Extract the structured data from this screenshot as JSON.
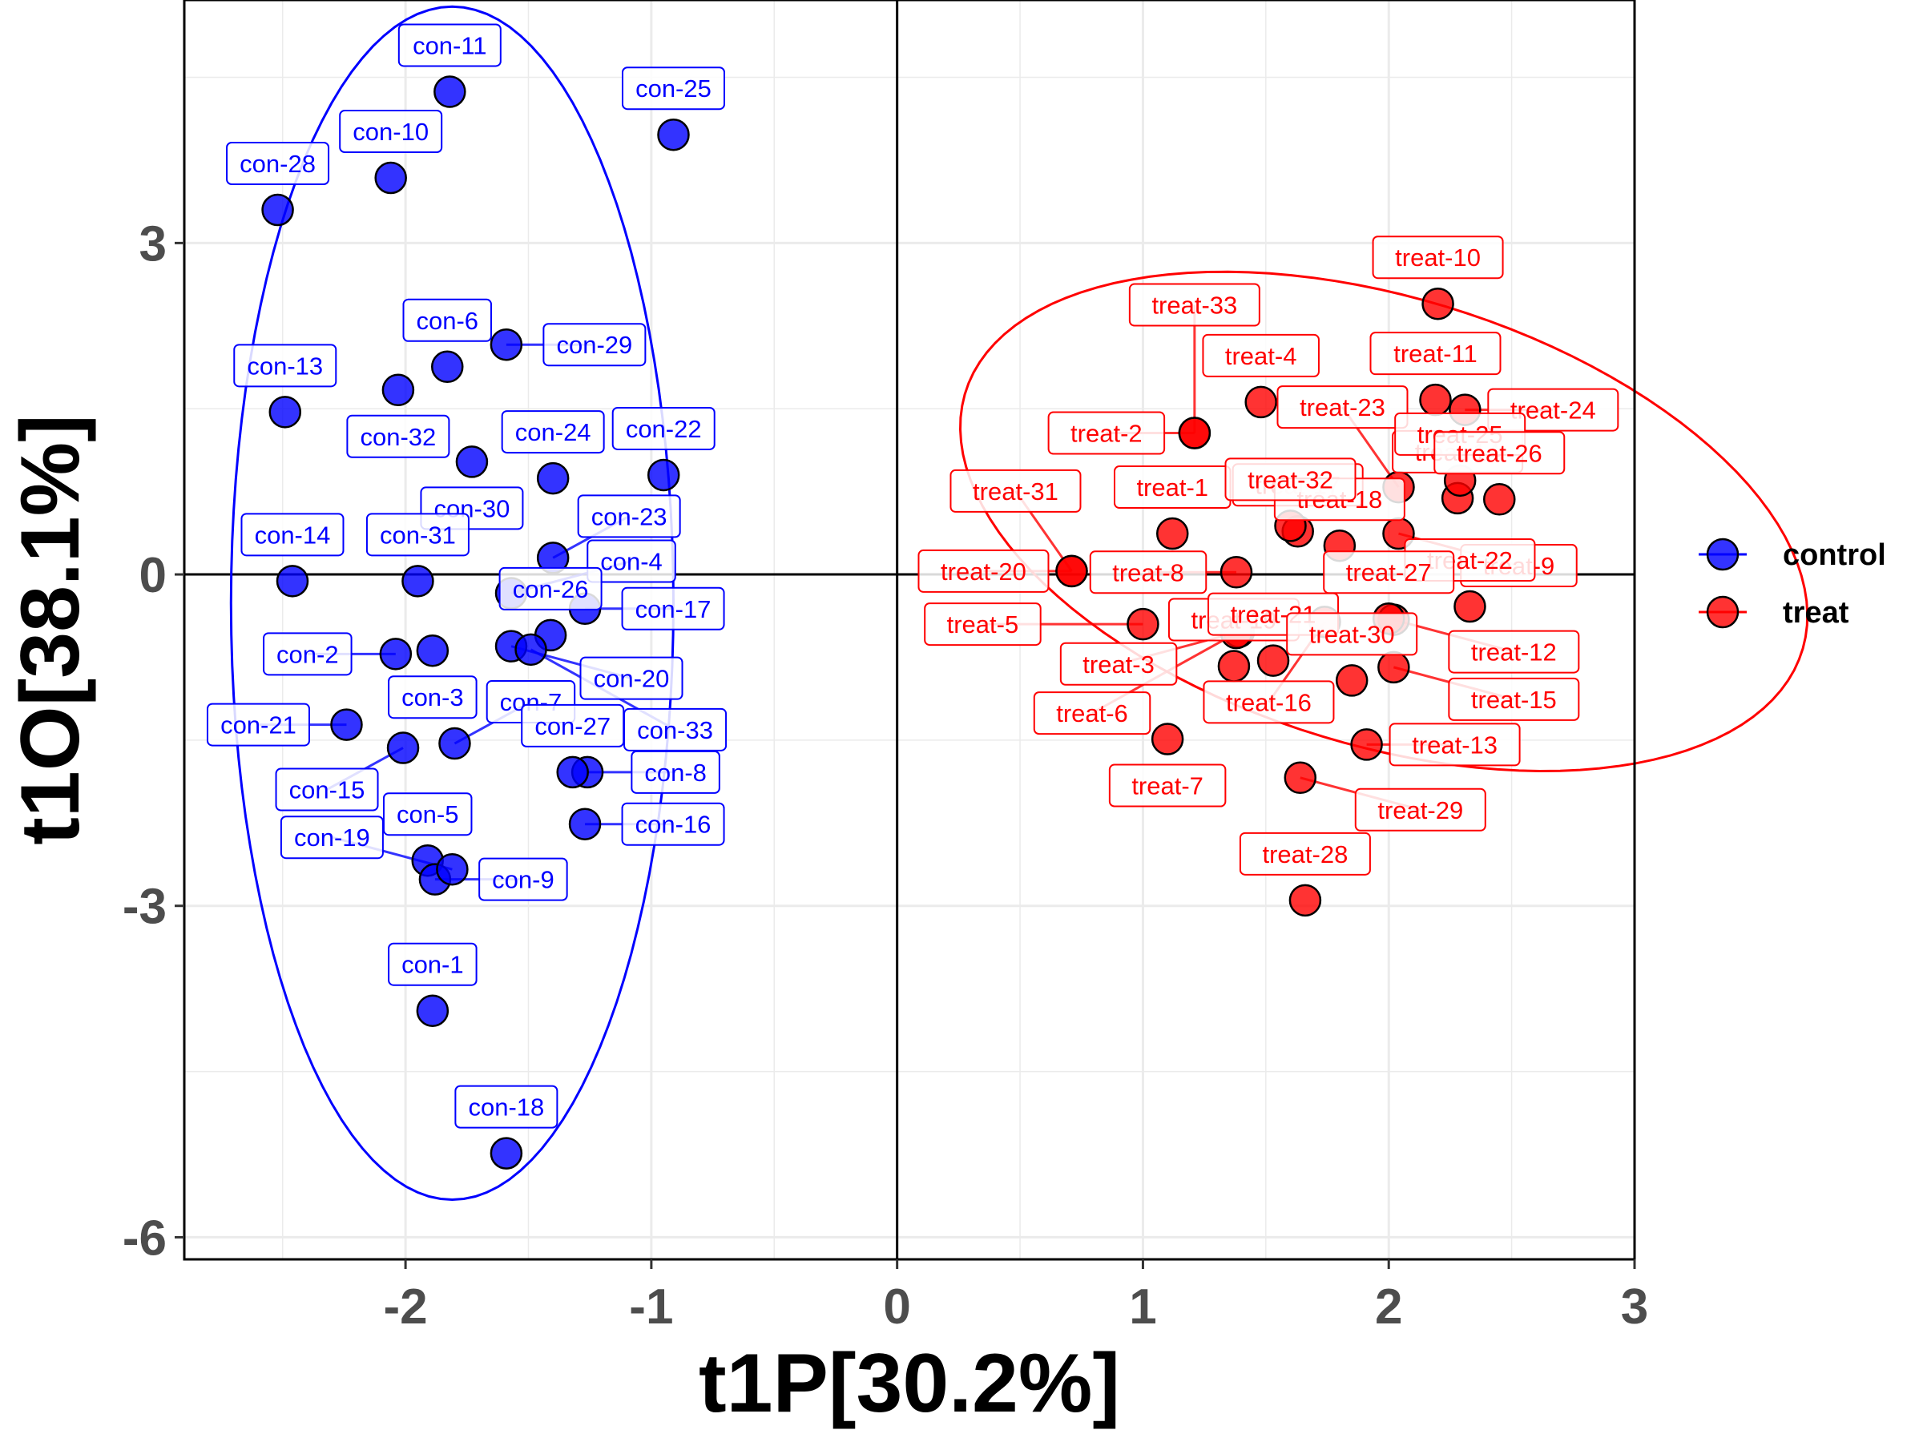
{
  "chart_data": {
    "type": "scatter",
    "title": "",
    "xlabel": "t1P[30.2%]",
    "ylabel": "t1O[38.1%]",
    "xlim": [
      -2.9,
      3.0
    ],
    "ylim": [
      -6.2,
      5.2
    ],
    "xticks": [
      -2,
      -1,
      0,
      1,
      2,
      3
    ],
    "yticks": [
      -6,
      -3,
      0,
      3
    ],
    "xtick_labels": [
      "-2",
      "-1",
      "0",
      "1",
      "2",
      "3"
    ],
    "ytick_labels": [
      "-6",
      "-3",
      "0",
      "3"
    ],
    "grid": true,
    "legend_position": "right",
    "series": [
      {
        "name": "control",
        "color": "#0000ff",
        "ellipse": {
          "cx": -1.81,
          "cy": -0.26,
          "rx": 0.9,
          "ry": 5.4
        },
        "points": [
          {
            "label": "con-1",
            "x": -1.89,
            "y": -3.95
          },
          {
            "label": "con-2",
            "x": -2.04,
            "y": -0.72
          },
          {
            "label": "con-3",
            "x": -1.89,
            "y": -0.69
          },
          {
            "label": "con-4",
            "x": -1.57,
            "y": -0.17
          },
          {
            "label": "con-5",
            "x": -1.91,
            "y": -2.59
          },
          {
            "label": "con-6",
            "x": -1.83,
            "y": 1.88
          },
          {
            "label": "con-7",
            "x": -1.8,
            "y": -1.53
          },
          {
            "label": "con-8",
            "x": -1.26,
            "y": -1.79
          },
          {
            "label": "con-9",
            "x": -1.88,
            "y": -2.76
          },
          {
            "label": "con-10",
            "x": -2.06,
            "y": 3.59
          },
          {
            "label": "con-11",
            "x": -1.82,
            "y": 4.37
          },
          {
            "label": "con-13",
            "x": -2.49,
            "y": 1.47
          },
          {
            "label": "con-14",
            "x": -2.46,
            "y": -0.06
          },
          {
            "label": "con-15",
            "x": -2.01,
            "y": -1.57
          },
          {
            "label": "con-16",
            "x": -1.27,
            "y": -2.26
          },
          {
            "label": "con-17",
            "x": -1.27,
            "y": -0.31
          },
          {
            "label": "con-18",
            "x": -1.59,
            "y": -5.24
          },
          {
            "label": "con-19",
            "x": -1.81,
            "y": -2.67
          },
          {
            "label": "con-20",
            "x": -1.57,
            "y": -0.65
          },
          {
            "label": "con-21",
            "x": -2.24,
            "y": -1.36
          },
          {
            "label": "con-22",
            "x": -0.95,
            "y": 0.9
          },
          {
            "label": "con-23",
            "x": -1.4,
            "y": 0.15
          },
          {
            "label": "con-24",
            "x": -1.4,
            "y": 0.87
          },
          {
            "label": "con-25",
            "x": -0.91,
            "y": 3.98
          },
          {
            "label": "con-26",
            "x": -1.41,
            "y": -0.55
          },
          {
            "label": "con-27",
            "x": -1.32,
            "y": -1.79
          },
          {
            "label": "con-28",
            "x": -2.52,
            "y": 3.3
          },
          {
            "label": "con-29",
            "x": -1.59,
            "y": 2.08
          },
          {
            "label": "con-30",
            "x": -1.73,
            "y": 1.02
          },
          {
            "label": "con-31",
            "x": -1.95,
            "y": -0.06
          },
          {
            "label": "con-32",
            "x": -2.03,
            "y": 1.67
          },
          {
            "label": "con-33",
            "x": -1.49,
            "y": -0.68
          }
        ]
      },
      {
        "name": "treat",
        "color": "#ff0000",
        "ellipse": {
          "cx": 1.98,
          "cy": 0.48,
          "rx": 1.49,
          "ry": 2.42,
          "rot": 27
        },
        "points": [
          {
            "label": "treat-1",
            "x": 1.12,
            "y": 0.37
          },
          {
            "label": "treat-2",
            "x": 1.21,
            "y": 1.28
          },
          {
            "label": "treat-3",
            "x": 1.39,
            "y": -0.52
          },
          {
            "label": "treat-4",
            "x": 1.48,
            "y": 1.56
          },
          {
            "label": "treat-5",
            "x": 1.0,
            "y": -0.45
          },
          {
            "label": "treat-6",
            "x": 1.38,
            "y": -0.53
          },
          {
            "label": "treat-7",
            "x": 1.1,
            "y": -1.49
          },
          {
            "label": "treat-8",
            "x": 1.38,
            "y": 0.02
          },
          {
            "label": "treat-9",
            "x": 2.04,
            "y": 0.37
          },
          {
            "label": "treat-10",
            "x": 2.2,
            "y": 2.45
          },
          {
            "label": "treat-11",
            "x": 2.19,
            "y": 1.58
          },
          {
            "label": "treat-12",
            "x": 2.02,
            "y": -0.41
          },
          {
            "label": "treat-13",
            "x": 1.91,
            "y": -1.54
          },
          {
            "label": "treat-14",
            "x": 2.28,
            "y": 0.69
          },
          {
            "label": "treat-15",
            "x": 2.02,
            "y": -0.84
          },
          {
            "label": "treat-16",
            "x": 1.74,
            "y": -0.43
          },
          {
            "label": "treat-17",
            "x": 1.63,
            "y": 0.39
          },
          {
            "label": "treat-18",
            "x": 1.8,
            "y": 0.26
          },
          {
            "label": "treat-19",
            "x": 1.37,
            "y": -0.83
          },
          {
            "label": "treat-20",
            "x": 0.71,
            "y": 0.03
          },
          {
            "label": "treat-21",
            "x": 1.53,
            "y": -0.78
          },
          {
            "label": "treat-22",
            "x": 2.33,
            "y": -0.29
          },
          {
            "label": "treat-23",
            "x": 2.04,
            "y": 0.79
          },
          {
            "label": "treat-24",
            "x": 2.31,
            "y": 1.49
          },
          {
            "label": "treat-25",
            "x": 2.29,
            "y": 0.85
          },
          {
            "label": "treat-26",
            "x": 2.45,
            "y": 0.68
          },
          {
            "label": "treat-27",
            "x": 2.0,
            "y": -0.4
          },
          {
            "label": "treat-28",
            "x": 1.66,
            "y": -2.95
          },
          {
            "label": "treat-29",
            "x": 1.64,
            "y": -1.84
          },
          {
            "label": "treat-30",
            "x": 1.85,
            "y": -0.96
          },
          {
            "label": "treat-31",
            "x": 0.71,
            "y": 0.03
          },
          {
            "label": "treat-32",
            "x": 1.6,
            "y": 0.44
          },
          {
            "label": "treat-33",
            "x": 1.21,
            "y": 1.28
          }
        ]
      }
    ]
  }
}
